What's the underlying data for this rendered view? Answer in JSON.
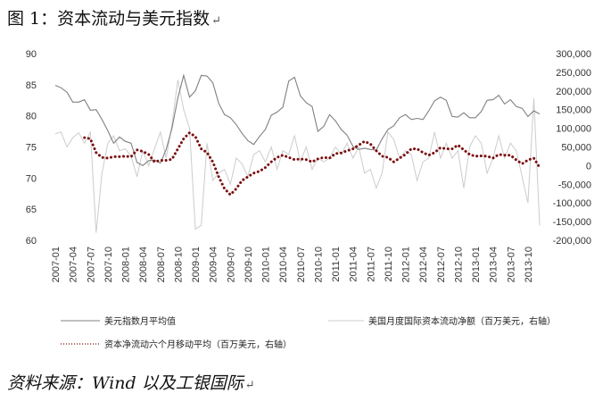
{
  "figure": {
    "title": "图 1：资本流动与美元指数",
    "return_mark": "↵",
    "source": "资料来源：Wind 以及工银国际"
  },
  "chart_data": {
    "type": "line",
    "x": [
      "2007-01",
      "2007-02",
      "2007-03",
      "2007-04",
      "2007-05",
      "2007-06",
      "2007-07",
      "2007-08",
      "2007-09",
      "2007-10",
      "2007-11",
      "2007-12",
      "2008-01",
      "2008-02",
      "2008-03",
      "2008-04",
      "2008-05",
      "2008-06",
      "2008-07",
      "2008-08",
      "2008-09",
      "2008-10",
      "2008-11",
      "2008-12",
      "2009-01",
      "2009-02",
      "2009-03",
      "2009-04",
      "2009-05",
      "2009-06",
      "2009-07",
      "2009-08",
      "2009-09",
      "2009-10",
      "2009-11",
      "2009-12",
      "2010-01",
      "2010-02",
      "2010-03",
      "2010-04",
      "2010-05",
      "2010-06",
      "2010-07",
      "2010-08",
      "2010-09",
      "2010-10",
      "2010-11",
      "2010-12",
      "2011-01",
      "2011-02",
      "2011-03",
      "2011-04",
      "2011-05",
      "2011-06",
      "2011-07",
      "2011-08",
      "2011-09",
      "2011-10",
      "2011-11",
      "2011-12",
      "2012-01",
      "2012-02",
      "2012-03",
      "2012-04",
      "2012-05",
      "2012-06",
      "2012-07",
      "2012-08",
      "2012-09",
      "2012-10",
      "2012-11",
      "2012-12",
      "2013-01",
      "2013-02",
      "2013-03",
      "2013-04",
      "2013-05",
      "2013-06",
      "2013-07",
      "2013-08",
      "2013-09",
      "2013-10",
      "2013-11",
      "2013-12"
    ],
    "x_tick_labels": [
      "2007-01",
      "2007-04",
      "2007-07",
      "2007-10",
      "2008-01",
      "2008-04",
      "2008-07",
      "2008-10",
      "2009-01",
      "2009-04",
      "2009-07",
      "2009-10",
      "2010-01",
      "2010-04",
      "2010-07",
      "2010-10",
      "2011-01",
      "2011-04",
      "2011-07",
      "2011-10",
      "2012-01",
      "2012-04",
      "2012-07",
      "2012-10",
      "2013-01",
      "2013-04",
      "2013-07",
      "2013-10"
    ],
    "y_left": {
      "ticks": [
        "60",
        "65",
        "70",
        "75",
        "80",
        "85",
        "90"
      ],
      "lim": [
        60,
        90
      ]
    },
    "y_right": {
      "ticks": [
        "300,000",
        "250,000",
        "200,000",
        "150,000",
        "100,000",
        "50,000",
        "0",
        "-50,000",
        "-100,000",
        "-150,000",
        "-200,000"
      ],
      "lim": [
        -200000,
        300000
      ]
    },
    "grid": false,
    "legend_position": "bottom",
    "series": [
      {
        "name": "美元指数月平均值",
        "axis": "left",
        "color": "#808080",
        "style": "solid",
        "values": [
          84.9,
          84.5,
          83.8,
          82.2,
          82.2,
          82.6,
          80.9,
          81.0,
          79.4,
          77.6,
          75.6,
          76.6,
          75.9,
          75.6,
          72.5,
          72.0,
          72.8,
          72.9,
          72.4,
          74.6,
          78.0,
          82.9,
          86.5,
          83.0,
          84.0,
          86.5,
          86.4,
          85.3,
          82.0,
          80.2,
          79.7,
          78.6,
          77.2,
          76.0,
          75.4,
          76.7,
          77.8,
          80.1,
          80.6,
          81.4,
          85.6,
          86.2,
          83.2,
          82.1,
          81.5,
          77.5,
          78.3,
          80.2,
          79.2,
          77.8,
          76.9,
          75.1,
          74.6,
          74.8,
          74.6,
          74.5,
          76.3,
          77.8,
          78.4,
          79.7,
          80.2,
          79.4,
          79.6,
          79.4,
          80.8,
          82.4,
          83.0,
          82.5,
          79.9,
          79.8,
          80.5,
          79.7,
          79.7,
          80.7,
          82.5,
          82.6,
          83.3,
          81.9,
          82.6,
          81.5,
          81.2,
          79.9,
          80.8,
          80.3
        ]
      },
      {
        "name": "美国月度国际资本流动净额（百万美元，右轴）",
        "axis": "right",
        "color": "#cccccc",
        "style": "solid",
        "values": [
          85000,
          90000,
          50000,
          75000,
          88000,
          60000,
          90000,
          -180000,
          -20000,
          60000,
          80000,
          40000,
          45000,
          25000,
          -30000,
          40000,
          0,
          45000,
          90000,
          20000,
          110000,
          230000,
          150000,
          100000,
          -170000,
          -160000,
          60000,
          -40000,
          -20000,
          -10000,
          -50000,
          20000,
          5000,
          -30000,
          30000,
          40000,
          10000,
          50000,
          -10000,
          40000,
          30000,
          80000,
          10000,
          50000,
          -10000,
          20000,
          10000,
          20000,
          50000,
          30000,
          60000,
          20000,
          50000,
          -20000,
          -10000,
          -60000,
          -20000,
          90000,
          70000,
          20000,
          40000,
          30000,
          -40000,
          10000,
          20000,
          90000,
          20000,
          60000,
          20000,
          40000,
          -60000,
          50000,
          80000,
          60000,
          -20000,
          20000,
          80000,
          20000,
          60000,
          40000,
          -30000,
          -100000,
          180000,
          -160000
        ]
      },
      {
        "name": "资本净流动六个月移动平均（百万美元，右轴）",
        "axis": "right",
        "color": "#7b0f0f",
        "style": "dotted",
        "values": [
          null,
          null,
          null,
          null,
          null,
          75000,
          72000,
          35000,
          22000,
          20000,
          24000,
          24000,
          25000,
          24000,
          42000,
          38000,
          30000,
          10000,
          14000,
          14000,
          17000,
          45000,
          72000,
          88000,
          78000,
          45000,
          35000,
          10000,
          -30000,
          -62000,
          -78000,
          -62000,
          -40000,
          -30000,
          -20000,
          -15000,
          -5000,
          10000,
          22000,
          28000,
          22000,
          16000,
          18000,
          16000,
          10000,
          18000,
          22000,
          20000,
          32000,
          34000,
          40000,
          45000,
          55000,
          65000,
          58000,
          40000,
          25000,
          22000,
          10000,
          20000,
          30000,
          45000,
          45000,
          35000,
          28000,
          35000,
          48000,
          45000,
          45000,
          55000,
          42000,
          30000,
          25000,
          26000,
          25000,
          20000,
          30000,
          28000,
          28000,
          15000,
          5000,
          15000,
          20000,
          -5000
        ]
      }
    ]
  }
}
